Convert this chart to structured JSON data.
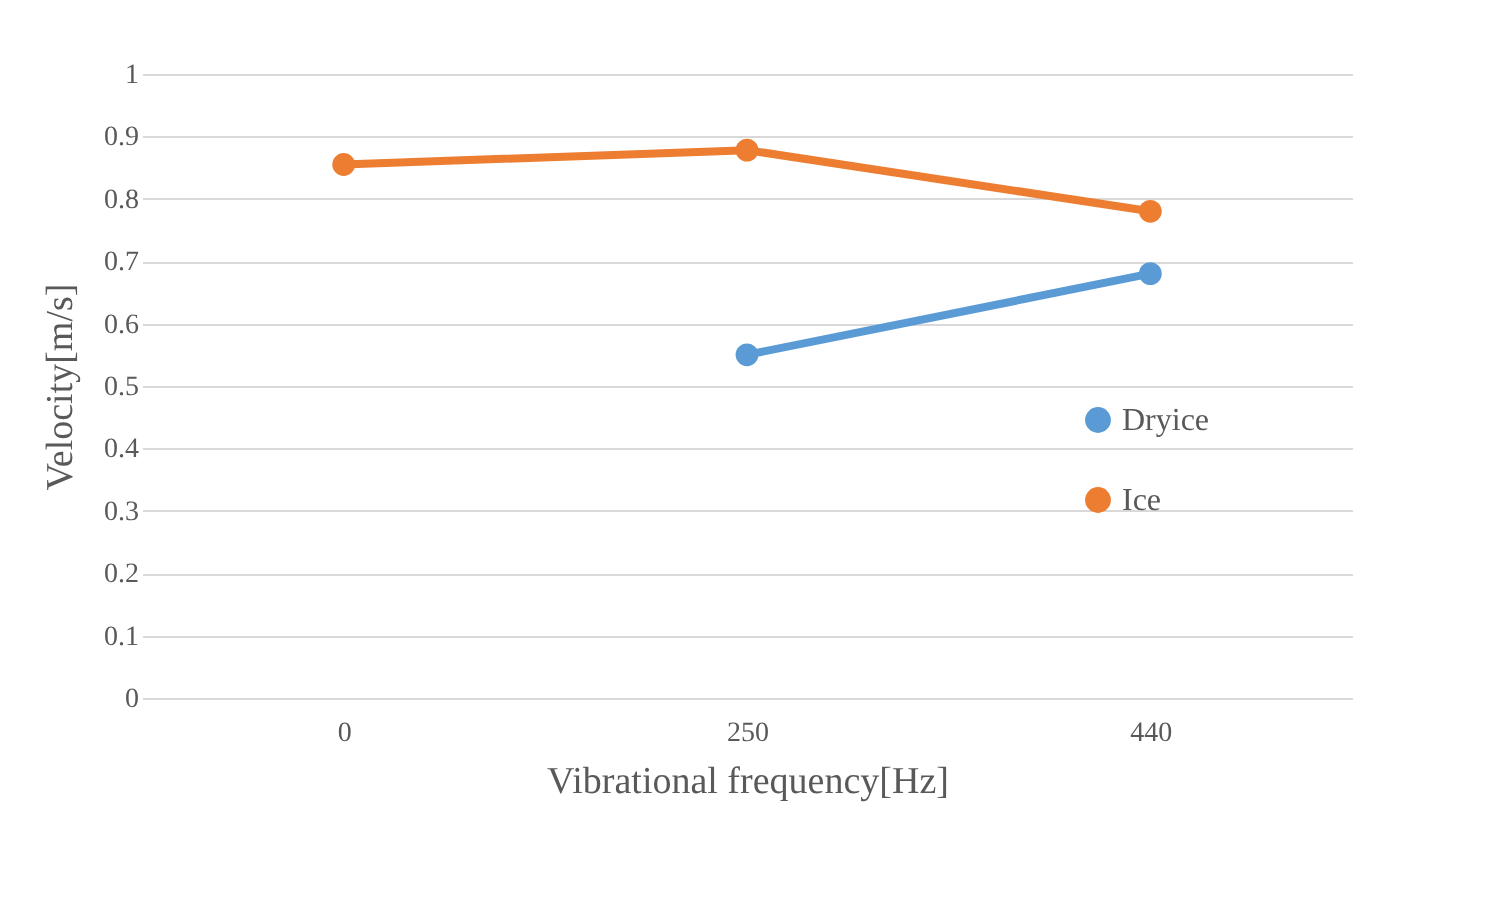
{
  "chart_data": {
    "type": "line",
    "xlabel": "Vibrational frequency[Hz]",
    "ylabel": "Velocity[m/s]",
    "categories": [
      "0",
      "250",
      "440"
    ],
    "series": [
      {
        "name": "Dryice",
        "color": "#5b9bd5",
        "values": [
          null,
          0.55,
          0.68
        ]
      },
      {
        "name": "Ice",
        "color": "#ed7d31",
        "values": [
          0.855,
          0.878,
          0.78
        ]
      }
    ],
    "ylim": [
      0,
      1
    ],
    "yticks": [
      0,
      0.1,
      0.2,
      0.3,
      0.4,
      0.5,
      0.6,
      0.7,
      0.8,
      0.9,
      1
    ],
    "grid": "y",
    "legend": "right",
    "marker": "circle",
    "line_style": "solid"
  }
}
